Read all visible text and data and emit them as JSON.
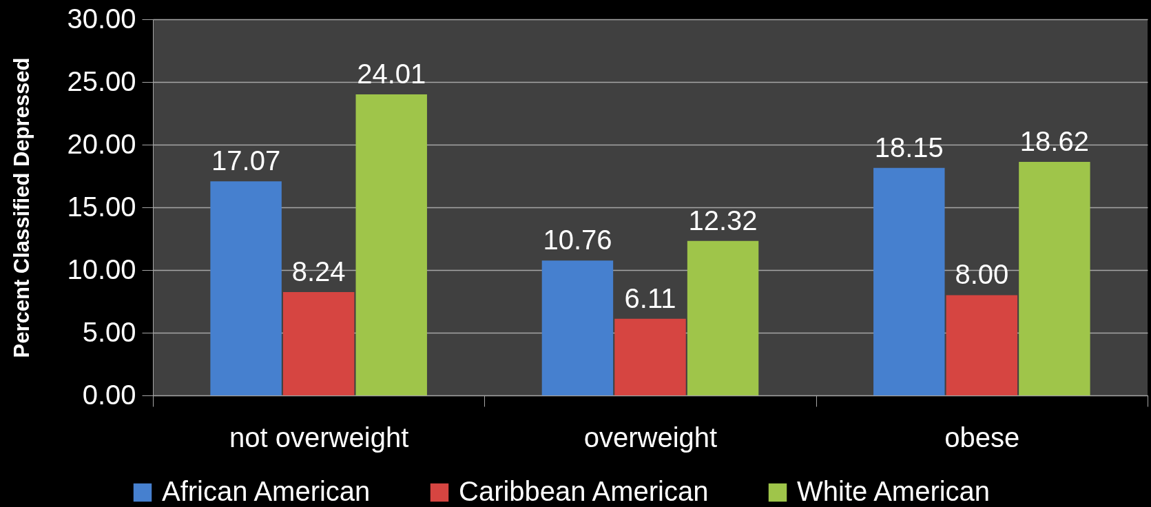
{
  "chart_data": {
    "type": "bar",
    "ylabel": "Percent Classified Depressed",
    "categories": [
      "not overweight",
      "overweight",
      "obese"
    ],
    "series": [
      {
        "name": "African American",
        "color": "#4680cf",
        "values": [
          17.07,
          10.76,
          18.15
        ],
        "value_labels": [
          "17.07",
          "10.76",
          "18.15"
        ]
      },
      {
        "name": "Caribbean American",
        "color": "#d64541",
        "values": [
          8.24,
          6.11,
          8.0
        ],
        "value_labels": [
          "8.24",
          "6.11",
          "8.00"
        ]
      },
      {
        "name": "White American",
        "color": "#9fc54a",
        "values": [
          24.01,
          12.32,
          18.62
        ],
        "value_labels": [
          "24.01",
          "12.32",
          "18.62"
        ]
      }
    ],
    "ylim": [
      0,
      30
    ],
    "yticks": [
      {
        "value": 0,
        "label": "0.00"
      },
      {
        "value": 5,
        "label": "5.00"
      },
      {
        "value": 10,
        "label": "10.00"
      },
      {
        "value": 15,
        "label": "15.00"
      },
      {
        "value": 20,
        "label": "20.00"
      },
      {
        "value": 25,
        "label": "25.00"
      },
      {
        "value": 30,
        "label": "30.00"
      }
    ],
    "grid": "y",
    "legend": "bottom"
  }
}
